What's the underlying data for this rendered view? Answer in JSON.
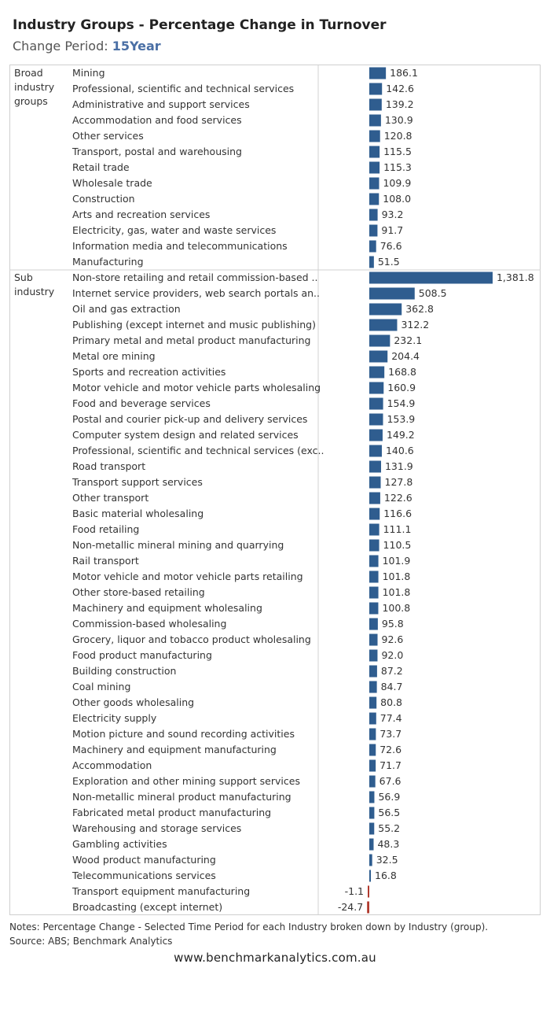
{
  "header": {
    "title": "Industry Groups - Percentage Change in Turnover",
    "period_label": "Change Period: ",
    "period_value": "15Year"
  },
  "notes": {
    "line1": "Notes: Percentage Change - Selected Time Period for each Industry broken down by Industry (group).",
    "line2": "Source: ABS; Benchmark Analytics"
  },
  "footer": {
    "url": "www.benchmarkanalytics.com.au"
  },
  "colors": {
    "positive": "#2f5d8f",
    "negative": "#b03a2e",
    "grid": "#d0d0d0"
  },
  "chart_data": {
    "type": "bar",
    "orientation": "horizontal",
    "value_format": "one decimal",
    "groups": [
      {
        "label_lines": [
          "Broad",
          "industry",
          "groups"
        ],
        "categories": [
          "Mining",
          "Professional, scientific and technical services",
          "Administrative and support services",
          "Accommodation and food services",
          "Other services",
          "Transport, postal and warehousing",
          "Retail trade",
          "Wholesale trade",
          "Construction",
          "Arts and recreation services",
          "Electricity, gas, water and waste services",
          "Information media and telecommunications",
          "Manufacturing"
        ],
        "values": [
          186.1,
          142.6,
          139.2,
          130.9,
          120.8,
          115.5,
          115.3,
          109.9,
          108.0,
          93.2,
          91.7,
          76.6,
          51.5
        ]
      },
      {
        "label_lines": [
          "Sub",
          "industry"
        ],
        "categories": [
          "Non-store retailing and retail commission-based ..",
          "Internet service providers, web search portals an..",
          "Oil and gas extraction",
          "Publishing (except internet and music publishing)",
          "Primary metal and metal product manufacturing",
          "Metal ore mining",
          "Sports and recreation activities",
          "Motor vehicle and motor vehicle parts wholesaling",
          "Food and beverage services",
          "Postal and courier pick-up and delivery services",
          "Computer system design and related services",
          "Professional, scientific and technical services (exc..",
          "Road transport",
          "Transport support services",
          "Other transport",
          "Basic material wholesaling",
          "Food retailing",
          "Non-metallic mineral mining and quarrying",
          "Rail transport",
          "Motor vehicle and motor vehicle parts retailing",
          "Other store-based retailing",
          "Machinery and equipment wholesaling",
          "Commission-based wholesaling",
          "Grocery, liquor and tobacco product wholesaling",
          "Food product manufacturing",
          "Building construction",
          "Coal mining",
          "Other goods wholesaling",
          "Electricity supply",
          "Motion picture and sound recording activities",
          "Machinery and equipment manufacturing",
          "Accommodation",
          "Exploration and other mining support services",
          "Non-metallic mineral product manufacturing",
          "Fabricated metal product manufacturing",
          "Warehousing and storage services",
          "Gambling activities",
          "Wood product manufacturing",
          "Telecommunications services",
          "Transport equipment manufacturing",
          "Broadcasting (except internet)"
        ],
        "values": [
          1381.8,
          508.5,
          362.8,
          312.2,
          232.1,
          204.4,
          168.8,
          160.9,
          154.9,
          153.9,
          149.2,
          140.6,
          131.9,
          127.8,
          122.6,
          116.6,
          111.1,
          110.5,
          101.9,
          101.8,
          101.8,
          100.8,
          95.8,
          92.6,
          92.0,
          87.2,
          84.7,
          80.8,
          77.4,
          73.7,
          72.6,
          71.7,
          67.6,
          56.9,
          56.5,
          55.2,
          48.3,
          32.5,
          16.8,
          -1.1,
          -24.7
        ]
      }
    ]
  }
}
